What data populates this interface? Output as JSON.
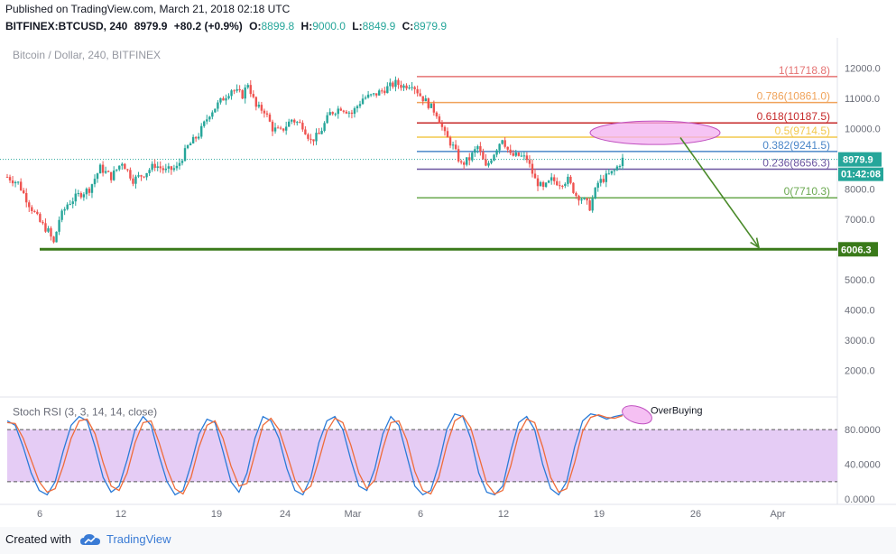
{
  "header": {
    "published": "Published on TradingView.com, March 21, 2018 02:18 UTC",
    "symbol": "BITFINEX:BTCUSD, 240",
    "last": "8979.9",
    "change": "+80.2 (+0.9%)",
    "o_label": "O:",
    "o_value": "8899.8",
    "h_label": "H:",
    "h_value": "9000.0",
    "l_label": "L:",
    "l_value": "8849.9",
    "c_label": "C:",
    "c_value": "8979.9"
  },
  "footer": {
    "created_with": "Created with",
    "brand": "TradingView"
  },
  "colors": {
    "up": "#26a69a",
    "down": "#ef5350",
    "support": "#3a7a1a",
    "arrow": "#4a8a2a",
    "ellipse_fill": "#f3b0f0",
    "ellipse_stroke": "#c050c0",
    "stoch_band": "#e5ccf5",
    "stoch_k": "#2a7bd8",
    "stoch_d": "#ef6c3a"
  },
  "chart_data": [
    {
      "type": "candlestick",
      "title": "Bitcoin / Dollar, 240, BITFINEX",
      "x_ticks": [
        "6",
        "12",
        "19",
        "24",
        "Mar",
        "6",
        "12",
        "19",
        "26",
        "Apr"
      ],
      "y_ticks": [
        "12000.0",
        "11000.0",
        "10000.0",
        "9000.0",
        "8000.0",
        "7000.0",
        "6000.0",
        "5000.0",
        "4000.0",
        "3000.0",
        "2000.0"
      ],
      "ylim": [
        1300,
        12700
      ],
      "price_path": [
        {
          "i": 0,
          "p": 8400
        },
        {
          "i": 4,
          "p": 8200
        },
        {
          "i": 8,
          "p": 7500
        },
        {
          "i": 12,
          "p": 6900
        },
        {
          "i": 15,
          "p": 6600
        },
        {
          "i": 17,
          "p": 6200
        },
        {
          "i": 19,
          "p": 7000
        },
        {
          "i": 22,
          "p": 7500
        },
        {
          "i": 26,
          "p": 7800
        },
        {
          "i": 30,
          "p": 8000
        },
        {
          "i": 34,
          "p": 8700
        },
        {
          "i": 38,
          "p": 8400
        },
        {
          "i": 42,
          "p": 8900
        },
        {
          "i": 46,
          "p": 8300
        },
        {
          "i": 50,
          "p": 8500
        },
        {
          "i": 54,
          "p": 8800
        },
        {
          "i": 58,
          "p": 8600
        },
        {
          "i": 62,
          "p": 8700
        },
        {
          "i": 66,
          "p": 9400
        },
        {
          "i": 70,
          "p": 9800
        },
        {
          "i": 74,
          "p": 10500
        },
        {
          "i": 78,
          "p": 10900
        },
        {
          "i": 82,
          "p": 11300
        },
        {
          "i": 86,
          "p": 11100
        },
        {
          "i": 88,
          "p": 11500
        },
        {
          "i": 91,
          "p": 10700
        },
        {
          "i": 94,
          "p": 10600
        },
        {
          "i": 97,
          "p": 10000
        },
        {
          "i": 100,
          "p": 9900
        },
        {
          "i": 104,
          "p": 10300
        },
        {
          "i": 108,
          "p": 10100
        },
        {
          "i": 111,
          "p": 9600
        },
        {
          "i": 114,
          "p": 9800
        },
        {
          "i": 118,
          "p": 10500
        },
        {
          "i": 122,
          "p": 10700
        },
        {
          "i": 126,
          "p": 10500
        },
        {
          "i": 130,
          "p": 11000
        },
        {
          "i": 134,
          "p": 11100
        },
        {
          "i": 138,
          "p": 11300
        },
        {
          "i": 142,
          "p": 11500
        },
        {
          "i": 145,
          "p": 11400
        },
        {
          "i": 148,
          "p": 11500
        },
        {
          "i": 151,
          "p": 11100
        },
        {
          "i": 154,
          "p": 10800
        },
        {
          "i": 157,
          "p": 10500
        },
        {
          "i": 160,
          "p": 9800
        },
        {
          "i": 163,
          "p": 9400
        },
        {
          "i": 166,
          "p": 8800
        },
        {
          "i": 169,
          "p": 9000
        },
        {
          "i": 172,
          "p": 9400
        },
        {
          "i": 175,
          "p": 8700
        },
        {
          "i": 178,
          "p": 9200
        },
        {
          "i": 181,
          "p": 9700
        },
        {
          "i": 184,
          "p": 9100
        },
        {
          "i": 187,
          "p": 9100
        },
        {
          "i": 190,
          "p": 9000
        },
        {
          "i": 193,
          "p": 8300
        },
        {
          "i": 196,
          "p": 8000
        },
        {
          "i": 199,
          "p": 8300
        },
        {
          "i": 202,
          "p": 8200
        },
        {
          "i": 205,
          "p": 8300
        },
        {
          "i": 208,
          "p": 7800
        },
        {
          "i": 210,
          "p": 7700
        },
        {
          "i": 213,
          "p": 7400
        },
        {
          "i": 216,
          "p": 8200
        },
        {
          "i": 219,
          "p": 8400
        },
        {
          "i": 222,
          "p": 8600
        },
        {
          "i": 225,
          "p": 8980
        }
      ],
      "last_price": "8979.9",
      "countdown": "01:42:08",
      "support_level": {
        "value": 6006.3,
        "label": "6006.3"
      },
      "fib_levels": [
        {
          "ratio": "1",
          "value": 11718.8,
          "label": "1(11718.8)",
          "color": "#e57373"
        },
        {
          "ratio": "0.786",
          "value": 10861.0,
          "label": "0.786(10861.0)",
          "color": "#f0a35a"
        },
        {
          "ratio": "0.618",
          "value": 10187.5,
          "label": "0.618(10187.5)",
          "color": "#c62828"
        },
        {
          "ratio": "0.5",
          "value": 9714.5,
          "label": "0.5(9714.5)",
          "color": "#f2c94c"
        },
        {
          "ratio": "0.382",
          "value": 9241.5,
          "label": "0.382(9241.5)",
          "color": "#4a86c8"
        },
        {
          "ratio": "0.236",
          "value": 8656.3,
          "label": "0.236(8656.3)",
          "color": "#6b55a0"
        },
        {
          "ratio": "0",
          "value": 7710.3,
          "label": "0(7710.3)",
          "color": "#6aa84f"
        }
      ],
      "target_zone": {
        "y_value": 9860
      },
      "arrow": {
        "from_value": 9700,
        "to_value": 6006.3
      }
    },
    {
      "type": "line",
      "title": "Stoch RSI (3, 3, 14, 14, close)",
      "y_ticks": [
        "80.0000",
        "40.0000",
        "0.0000"
      ],
      "ylim": [
        -5,
        105
      ],
      "band": [
        20,
        80
      ],
      "annotation": "OverBuying",
      "series": [
        {
          "name": "K",
          "values": [
            90,
            85,
            60,
            30,
            10,
            5,
            20,
            55,
            85,
            95,
            90,
            60,
            25,
            8,
            15,
            45,
            80,
            95,
            85,
            50,
            20,
            5,
            10,
            40,
            75,
            92,
            88,
            55,
            20,
            8,
            30,
            70,
            95,
            90,
            70,
            35,
            10,
            5,
            25,
            65,
            90,
            95,
            80,
            45,
            15,
            10,
            35,
            75,
            95,
            85,
            50,
            15,
            5,
            10,
            40,
            80,
            98,
            95,
            70,
            30,
            8,
            5,
            15,
            55,
            88,
            95,
            80,
            40,
            12,
            5,
            20,
            60,
            90,
            98,
            96,
            92,
            95,
            97
          ]
        },
        {
          "name": "D",
          "values": [
            88,
            87,
            70,
            45,
            20,
            8,
            12,
            38,
            70,
            90,
            92,
            75,
            42,
            15,
            10,
            30,
            65,
            88,
            90,
            65,
            35,
            12,
            6,
            25,
            60,
            85,
            90,
            70,
            38,
            15,
            18,
            52,
            85,
            93,
            80,
            52,
            22,
            8,
            15,
            45,
            78,
            93,
            88,
            62,
            30,
            12,
            22,
            58,
            88,
            90,
            68,
            32,
            10,
            6,
            25,
            62,
            90,
            96,
            82,
            50,
            18,
            6,
            10,
            38,
            75,
            92,
            88,
            60,
            25,
            8,
            12,
            42,
            78,
            94,
            97,
            94,
            93,
            96
          ]
        }
      ],
      "x_ticks": [
        "6",
        "12",
        "19",
        "24",
        "Mar",
        "6",
        "12",
        "19",
        "26",
        "Apr"
      ]
    }
  ]
}
